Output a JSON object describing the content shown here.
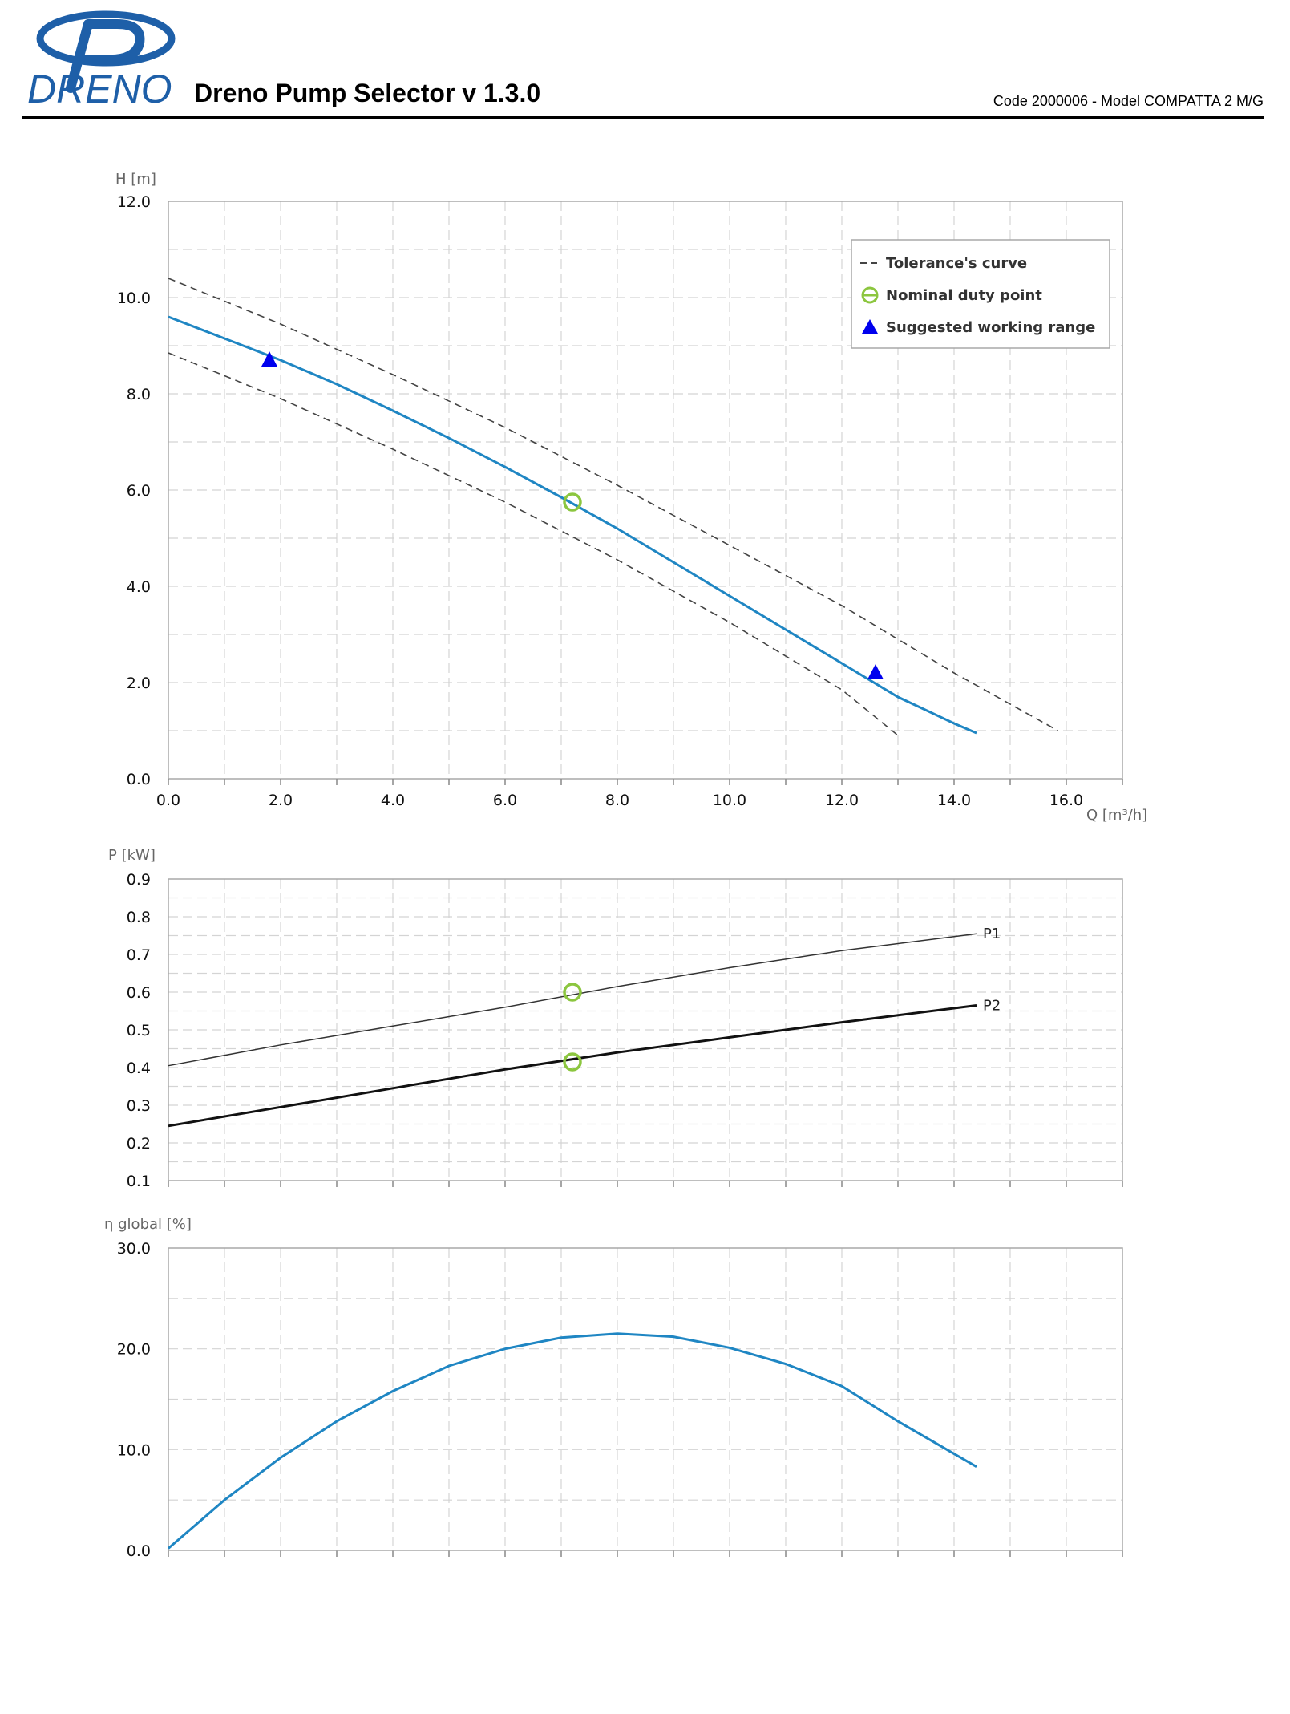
{
  "header": {
    "logo_text": "DRENO",
    "title": "Dreno Pump Selector v 1.3.0",
    "model_code": "Code 2000006 - Model COMPATTA 2 M/G"
  },
  "colors": {
    "brand_blue": "#1e5fa8",
    "curve_blue": "#1f86c3",
    "duty_point_green": "#8cc63f",
    "range_marker_blue": "#0000ee",
    "tolerance_gray": "#444444"
  },
  "chart_data": [
    {
      "type": "line",
      "title": "",
      "xlabel": "Q [m³/h]",
      "ylabel": "H [m]",
      "xlim": [
        0,
        17
      ],
      "ylim": [
        0,
        12
      ],
      "x_ticks": [
        "0.0",
        "2.0",
        "4.0",
        "6.0",
        "8.0",
        "10.0",
        "12.0",
        "14.0",
        "16.0"
      ],
      "y_ticks": [
        "0.0",
        "2.0",
        "4.0",
        "6.0",
        "8.0",
        "10.0",
        "12.0"
      ],
      "grid": true,
      "legend_position": "top-right",
      "legend": [
        "Tolerance's curve",
        "Nominal duty point",
        "Suggested working range"
      ],
      "series": [
        {
          "role": "curve",
          "x": [
            0,
            1,
            2,
            3,
            4,
            5,
            6,
            7,
            8,
            9,
            10,
            11,
            12,
            13,
            14,
            14.4
          ],
          "y": [
            9.6,
            9.15,
            8.7,
            8.2,
            7.65,
            7.08,
            6.48,
            5.85,
            5.2,
            4.5,
            3.8,
            3.1,
            2.4,
            1.7,
            1.15,
            0.95
          ]
        },
        {
          "role": "tolerance-upper",
          "x": [
            0,
            2,
            4,
            6,
            8,
            10,
            12,
            14,
            15.85
          ],
          "y": [
            10.4,
            9.45,
            8.4,
            7.3,
            6.1,
            4.85,
            3.6,
            2.2,
            1.0
          ]
        },
        {
          "role": "tolerance-lower",
          "x": [
            0,
            2,
            4,
            6,
            8,
            10,
            12,
            13
          ],
          "y": [
            8.85,
            7.9,
            6.85,
            5.75,
            4.55,
            3.25,
            1.85,
            0.9
          ]
        }
      ],
      "duty_point": {
        "x": 7.2,
        "y": 5.75
      },
      "working_range": [
        {
          "x": 1.8,
          "y": 8.7
        },
        {
          "x": 12.6,
          "y": 2.2
        }
      ]
    },
    {
      "type": "line",
      "title": "",
      "xlabel": "",
      "ylabel": "P [kW]",
      "xlim": [
        0,
        17
      ],
      "ylim": [
        0.1,
        0.9
      ],
      "y_ticks": [
        "0.1",
        "0.2",
        "0.3",
        "0.4",
        "0.5",
        "0.6",
        "0.7",
        "0.8",
        "0.9"
      ],
      "grid": true,
      "series": [
        {
          "name": "P1",
          "x": [
            0,
            2,
            4,
            6,
            8,
            10,
            12,
            14.4
          ],
          "y": [
            0.405,
            0.46,
            0.51,
            0.56,
            0.615,
            0.665,
            0.71,
            0.755
          ]
        },
        {
          "name": "P2",
          "x": [
            0,
            2,
            4,
            6,
            8,
            10,
            12,
            14.4
          ],
          "y": [
            0.245,
            0.295,
            0.345,
            0.395,
            0.44,
            0.48,
            0.52,
            0.565
          ]
        }
      ],
      "duty_points": [
        {
          "x": 7.2,
          "y": 0.6
        },
        {
          "x": 7.2,
          "y": 0.415
        }
      ]
    },
    {
      "type": "line",
      "title": "",
      "xlabel": "",
      "ylabel": "η global [%]",
      "xlim": [
        0,
        17
      ],
      "ylim": [
        0,
        30
      ],
      "y_ticks": [
        "0.0",
        "10.0",
        "20.0",
        "30.0"
      ],
      "grid": true,
      "series": [
        {
          "role": "efficiency",
          "x": [
            0,
            1,
            2,
            3,
            4,
            5,
            6,
            7,
            8,
            9,
            10,
            11,
            12,
            13,
            14.4
          ],
          "y": [
            0.2,
            5.0,
            9.2,
            12.8,
            15.8,
            18.3,
            20.0,
            21.1,
            21.5,
            21.2,
            20.1,
            18.5,
            16.3,
            12.8,
            8.3
          ]
        }
      ]
    }
  ]
}
